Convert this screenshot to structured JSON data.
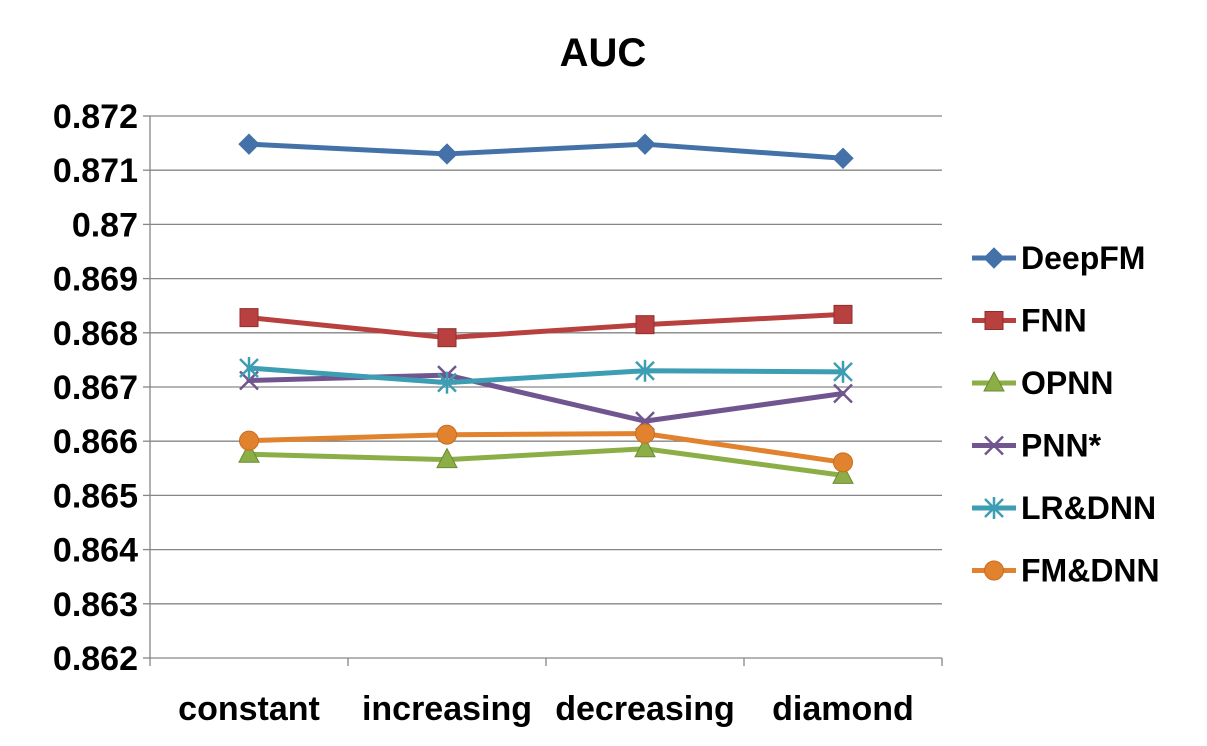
{
  "chart_data": {
    "type": "line",
    "title": "AUC",
    "xlabel": "",
    "ylabel": "",
    "categories": [
      "constant",
      "increasing",
      "decreasing",
      "diamond"
    ],
    "ylim": [
      0.862,
      0.872
    ],
    "yticks": [
      "0.862",
      "0.863",
      "0.864",
      "0.865",
      "0.866",
      "0.867",
      "0.868",
      "0.869",
      "0.87",
      "0.871",
      "0.872"
    ],
    "grid": true,
    "legend_position": "right",
    "series": [
      {
        "name": "DeepFM",
        "color": "#4472a8",
        "marker": "diamond",
        "values": [
          0.87148,
          0.8713,
          0.87148,
          0.87122
        ]
      },
      {
        "name": "FNN",
        "color": "#b8413f",
        "marker": "square",
        "values": [
          0.86828,
          0.86791,
          0.86815,
          0.86834
        ]
      },
      {
        "name": "OPNN",
        "color": "#8bae46",
        "marker": "triangle",
        "values": [
          0.86576,
          0.86566,
          0.86586,
          0.86537
        ]
      },
      {
        "name": "PNN*",
        "color": "#71558f",
        "marker": "x",
        "values": [
          0.86712,
          0.86722,
          0.86637,
          0.86688
        ]
      },
      {
        "name": "LR&DNN",
        "color": "#3d9db3",
        "marker": "asterisk",
        "values": [
          0.86735,
          0.86708,
          0.8673,
          0.86728
        ]
      },
      {
        "name": "FM&DNN",
        "color": "#e1822e",
        "marker": "circle",
        "values": [
          0.86601,
          0.86612,
          0.86614,
          0.86561
        ]
      }
    ]
  }
}
